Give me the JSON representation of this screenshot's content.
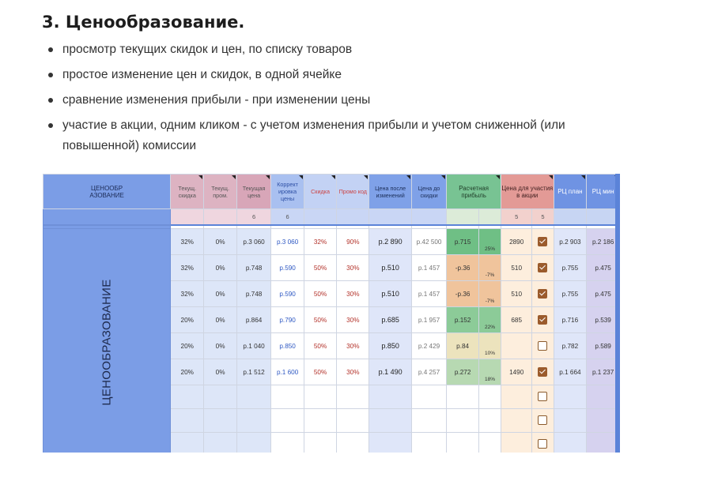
{
  "heading": "3. Ценообразование.",
  "bullets": [
    "просмотр текущих скидок и цен, по списку товаров",
    "простое изменение цен и скидок, в одной ячейке",
    "сравнение изменения прибыли - при изменении цены",
    "участие в акции, одним кликом - с учетом изменения прибыли и учетом сниженной (или повышенной) комиссии"
  ],
  "sheet": {
    "corner_label": "ЦЕНООБР\nАЗОВАНИЕ",
    "side_label": "ЦЕНООБРАЗОВАНИЕ",
    "headers": [
      "Текущ. скидка",
      "Текущ. пром.",
      "Текущая цена",
      "Коррект ировка цены",
      "Скидка",
      "Промо код",
      "Цена после изменений",
      "Цена до скидки",
      "Расчетная прибыль",
      "Цена для участия в акции",
      "РЦ план",
      "РЦ мин"
    ],
    "sub_values": {
      "current_price": "6",
      "price_adjust": "6",
      "promo_price": "5",
      "promo_check": "5"
    },
    "rows": [
      {
        "disc": "32%",
        "prom": "0%",
        "price": "р.3 060",
        "adj": "р.3 060",
        "sk": "32%",
        "code": "90%",
        "after": "р.2 890",
        "before": "р.42 500",
        "profit": "р.715",
        "pct": "25%",
        "promo": "2890",
        "checked": true,
        "plan": "р.2 903",
        "min": "р.2 186",
        "pcolor": "p-g1"
      },
      {
        "disc": "32%",
        "prom": "0%",
        "price": "р.748",
        "adj": "р.590",
        "sk": "50%",
        "code": "30%",
        "after": "р.510",
        "before": "р.1 457",
        "profit": "-р.36",
        "pct": "-7%",
        "promo": "510",
        "checked": true,
        "plan": "р.755",
        "min": "р.475",
        "pcolor": "p-o1"
      },
      {
        "disc": "32%",
        "prom": "0%",
        "price": "р.748",
        "adj": "р.590",
        "sk": "50%",
        "code": "30%",
        "after": "р.510",
        "before": "р.1 457",
        "profit": "-р.36",
        "pct": "-7%",
        "promo": "510",
        "checked": true,
        "plan": "р.755",
        "min": "р.475",
        "pcolor": "p-o1"
      },
      {
        "disc": "20%",
        "prom": "0%",
        "price": "р.864",
        "adj": "р.790",
        "sk": "50%",
        "code": "30%",
        "after": "р.685",
        "before": "р.1 957",
        "profit": "р.152",
        "pct": "22%",
        "promo": "685",
        "checked": true,
        "plan": "р.716",
        "min": "р.539",
        "pcolor": "p-g2"
      },
      {
        "disc": "20%",
        "prom": "0%",
        "price": "р.1 040",
        "adj": "р.850",
        "sk": "50%",
        "code": "30%",
        "after": "р.850",
        "before": "р.2 429",
        "profit": "р.84",
        "pct": "10%",
        "promo": "",
        "checked": false,
        "plan": "р.782",
        "min": "р.589",
        "pcolor": "p-y"
      },
      {
        "disc": "20%",
        "prom": "0%",
        "price": "р.1 512",
        "adj": "р.1 600",
        "sk": "50%",
        "code": "30%",
        "after": "р.1 490",
        "before": "р.4 257",
        "profit": "р.272",
        "pct": "18%",
        "promo": "1490",
        "checked": true,
        "plan": "р.1 664",
        "min": "р.1 237",
        "pcolor": "p-g3"
      }
    ],
    "empty_rows": 3,
    "colors": {
      "accent_blue": "#5b83d8",
      "checkbox": "#9b5b2c",
      "profit_green": "#6fbf85",
      "profit_orange": "#f0c49c"
    }
  }
}
